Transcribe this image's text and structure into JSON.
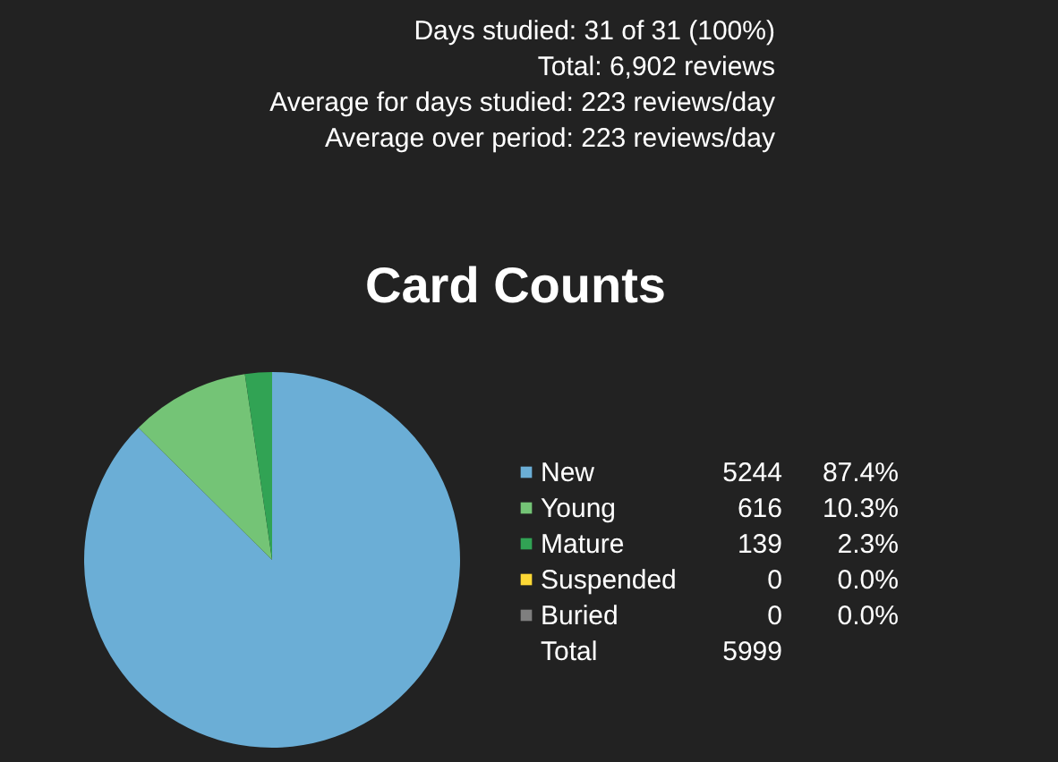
{
  "chart_data": {
    "type": "pie",
    "title": "Card Counts",
    "categories": [
      "New",
      "Young",
      "Mature",
      "Suspended",
      "Buried"
    ],
    "values": [
      5244,
      616,
      139,
      0,
      0
    ],
    "colors": [
      "#6baed6",
      "#74c476",
      "#31a354",
      "#fdd835",
      "#7f7f7f"
    ],
    "data_labels": true,
    "value_labels": [
      "5244",
      "616",
      "139",
      "0",
      "0"
    ],
    "totals": [
      "Total",
      "5999"
    ],
    "legend": "right",
    "annotations": [
      "Days studied: 31 of 31 (100%)",
      "Total: 6,902 reviews",
      "Average for days studied: 223 reviews/day",
      "Average over period: 223 reviews/day",
      {
        "text": "87.4%",
        "x": "New"
      },
      {
        "text": "10.3%",
        "x": "Young"
      },
      {
        "text": "2.3%",
        "x": "Mature"
      },
      {
        "text": "0.0%",
        "x": "Suspended"
      },
      {
        "text": "0.0%",
        "x": "Buried"
      }
    ]
  }
}
